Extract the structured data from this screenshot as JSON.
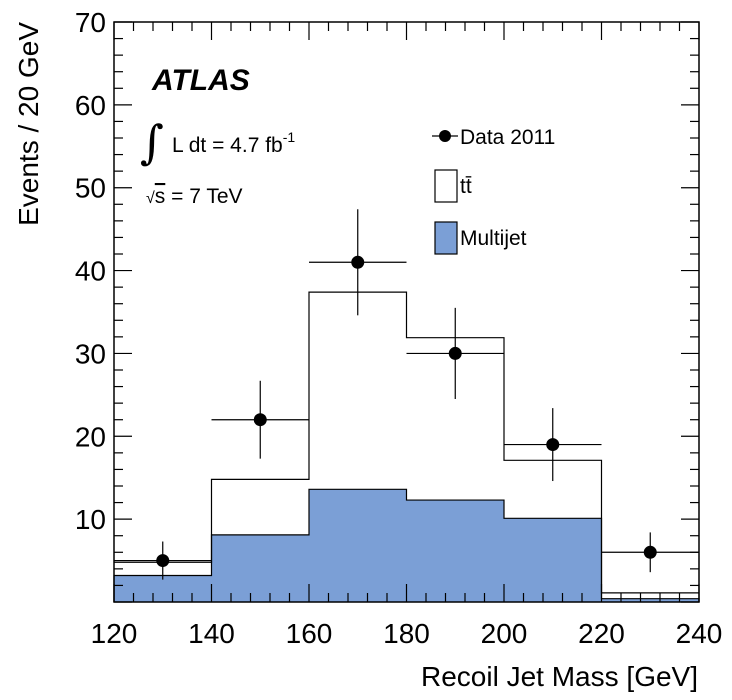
{
  "chart_data": {
    "type": "bar",
    "xlabel": "Recoil Jet Mass [GeV]",
    "ylabel": "Events / 20 GeV",
    "xlim": [
      120,
      240
    ],
    "ylim": [
      0,
      70
    ],
    "x_ticks": [
      "120",
      "140",
      "160",
      "180",
      "200",
      "220",
      "240"
    ],
    "y_ticks": [
      "10",
      "20",
      "30",
      "40",
      "50",
      "60",
      "70"
    ],
    "bin_edges": [
      120,
      140,
      160,
      180,
      200,
      220,
      240
    ],
    "series": [
      {
        "name": "Multijet",
        "style": "filled-histogram",
        "color": "#7b9fd6",
        "values": [
          3.2,
          8.1,
          13.6,
          12.3,
          10.1,
          0.4
        ]
      },
      {
        "name": "tt̄",
        "style": "stacked-outline-histogram",
        "color": "#ffffff",
        "stacked_total": [
          4.8,
          14.8,
          37.4,
          31.9,
          17.1,
          1.1
        ]
      },
      {
        "name": "Data 2011",
        "style": "points-with-errors",
        "color": "#000000",
        "x": [
          130,
          150,
          170,
          190,
          210,
          230
        ],
        "values": [
          5,
          22,
          41,
          30,
          19,
          6
        ],
        "err_low": [
          2.3,
          4.7,
          6.4,
          5.5,
          4.4,
          2.4
        ],
        "err_high": [
          2.3,
          4.7,
          6.4,
          5.5,
          4.4,
          2.4
        ]
      }
    ],
    "legend": {
      "placement": "top-right",
      "entries": [
        "Data 2011",
        "tt̄",
        "Multijet"
      ]
    },
    "annotations": {
      "experiment": "ATLAS",
      "lumi_prefix": "L dt = 4.7 fb",
      "lumi_exp": "-1",
      "energy_sqrt": "√",
      "energy_s": "s",
      "energy_rest": " = 7 TeV"
    },
    "grid": false
  }
}
